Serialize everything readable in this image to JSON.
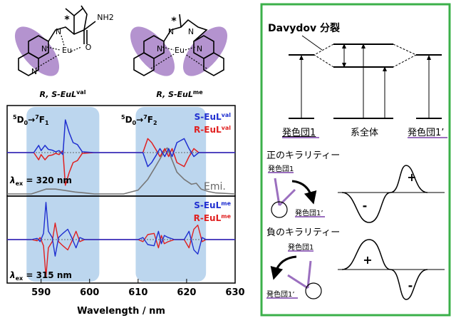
{
  "molecules": [
    {
      "label_prefix": "R, S-EuL",
      "label_sup": "val",
      "metal": "Eu",
      "chiral_mark": "*",
      "group": "NH2",
      "o": "O",
      "n1": "N",
      "n2": "N",
      "n3": "N"
    },
    {
      "label_prefix": "R, S-EuL",
      "label_sup": "me",
      "metal": "Eu",
      "chiral_mark": "*",
      "n1": "N",
      "n2": "N",
      "n3": "N",
      "n4": "N"
    }
  ],
  "colors": {
    "s_series": "#1f2fd0",
    "r_series": "#e02020",
    "emission": "#777777",
    "highlight": "#bcd6ee",
    "ligand": "#9b6fbf",
    "frame": "#3bb04a"
  },
  "spectrum": {
    "transition1": {
      "pre": "5",
      "a": "D",
      "sub": "0",
      "arrow": "→",
      "post": "7",
      "b": "F",
      "sub2": "1"
    },
    "transition2": {
      "pre": "5",
      "a": "D",
      "sub": "0",
      "arrow": "→",
      "post": "7",
      "b": "F",
      "sub2": "2"
    },
    "top_panel": {
      "legend": [
        {
          "prefix": "S-EuL",
          "sup": "val"
        },
        {
          "prefix": "R-EuL",
          "sup": "val"
        }
      ],
      "emission_label": "Emi.",
      "excitation": {
        "symbol": "λ",
        "sub": "ex",
        "value": " = 320 nm"
      }
    },
    "bottom_panel": {
      "legend": [
        {
          "prefix": "S-EuL",
          "sup": "me"
        },
        {
          "prefix": "R-EuL",
          "sup": "me"
        }
      ],
      "excitation": {
        "symbol": "λ",
        "sub": "ex",
        "value": " = 315 nm"
      }
    }
  },
  "chart_data": {
    "type": "line",
    "xlabel": "Wavelength / nm",
    "x_ticks": [
      590,
      600,
      610,
      620,
      630
    ],
    "xlim": [
      583,
      630
    ],
    "highlight_bands": [
      [
        587,
        602
      ],
      [
        609.5,
        624
      ]
    ],
    "top_series": {
      "S_val": [
        [
          583,
          0
        ],
        [
          588.5,
          0
        ],
        [
          589.5,
          0.18
        ],
        [
          590,
          0.05
        ],
        [
          590.8,
          0.18
        ],
        [
          591.5,
          0.08
        ],
        [
          592.3,
          0.06
        ],
        [
          593,
          0.02
        ],
        [
          593.7,
          0.05
        ],
        [
          594.5,
          -0.05
        ],
        [
          595,
          0.82
        ],
        [
          595.8,
          0.5
        ],
        [
          596.6,
          0.25
        ],
        [
          597.5,
          0.2
        ],
        [
          598.5,
          0.02
        ],
        [
          601,
          0
        ],
        [
          611,
          0
        ],
        [
          612,
          -0.35
        ],
        [
          612.8,
          -0.25
        ],
        [
          613.8,
          -0.05
        ],
        [
          614.5,
          0.1
        ],
        [
          615.5,
          -0.1
        ],
        [
          616.3,
          0.1
        ],
        [
          617,
          -0.1
        ],
        [
          618,
          0.25
        ],
        [
          619.5,
          0.35
        ],
        [
          620.5,
          0.1
        ],
        [
          621.5,
          -0.1
        ],
        [
          622.5,
          0
        ],
        [
          630,
          0
        ]
      ],
      "R_val": [
        [
          583,
          0
        ],
        [
          588.5,
          0
        ],
        [
          589.5,
          -0.18
        ],
        [
          590,
          -0.05
        ],
        [
          590.8,
          -0.18
        ],
        [
          591.5,
          -0.08
        ],
        [
          592.3,
          -0.06
        ],
        [
          593,
          -0.02
        ],
        [
          593.7,
          -0.05
        ],
        [
          594.5,
          0.05
        ],
        [
          595,
          -0.82
        ],
        [
          595.8,
          -0.5
        ],
        [
          596.6,
          -0.25
        ],
        [
          597.5,
          -0.2
        ],
        [
          598.5,
          -0.02
        ],
        [
          601,
          0
        ],
        [
          611,
          0
        ],
        [
          612,
          0.35
        ],
        [
          612.8,
          0.25
        ],
        [
          613.8,
          0.05
        ],
        [
          614.5,
          -0.1
        ],
        [
          615.5,
          0.1
        ],
        [
          616.3,
          -0.1
        ],
        [
          617,
          0.1
        ],
        [
          618,
          -0.25
        ],
        [
          619.5,
          -0.35
        ],
        [
          620.5,
          -0.1
        ],
        [
          621.5,
          0.1
        ],
        [
          622.5,
          0
        ],
        [
          630,
          0
        ]
      ],
      "Emission": [
        [
          583,
          0
        ],
        [
          588,
          0
        ],
        [
          589.5,
          0.05
        ],
        [
          591,
          0.1
        ],
        [
          593,
          0.1
        ],
        [
          595,
          0.07
        ],
        [
          597,
          0.04
        ],
        [
          599,
          0.02
        ],
        [
          601,
          0
        ],
        [
          607,
          0
        ],
        [
          610,
          0.08
        ],
        [
          612,
          0.3
        ],
        [
          613.5,
          0.55
        ],
        [
          614.5,
          0.72
        ],
        [
          615.5,
          0.9
        ],
        [
          616,
          0.95
        ],
        [
          617,
          0.7
        ],
        [
          618,
          0.45
        ],
        [
          619.5,
          0.3
        ],
        [
          621,
          0.2
        ],
        [
          622,
          0.22
        ],
        [
          623,
          0.1
        ],
        [
          624.5,
          0.05
        ],
        [
          626,
          0.02
        ],
        [
          630,
          0
        ]
      ]
    },
    "bottom_series": {
      "S_me": [
        [
          583,
          0
        ],
        [
          588,
          0
        ],
        [
          589.2,
          0.03
        ],
        [
          589.8,
          -0.05
        ],
        [
          590.5,
          0.15
        ],
        [
          591,
          0.9
        ],
        [
          591.5,
          0.2
        ],
        [
          592.3,
          0.05
        ],
        [
          592.9,
          -0.4
        ],
        [
          593.6,
          0.05
        ],
        [
          594.5,
          0.15
        ],
        [
          595.5,
          0.25
        ],
        [
          596.3,
          0.05
        ],
        [
          597.2,
          -0.2
        ],
        [
          598,
          0.05
        ],
        [
          599,
          0
        ],
        [
          610,
          0
        ],
        [
          611,
          0.05
        ],
        [
          612,
          -0.12
        ],
        [
          613.3,
          -0.15
        ],
        [
          614.2,
          0.2
        ],
        [
          614.8,
          -0.1
        ],
        [
          615.4,
          0.1
        ],
        [
          616.2,
          0.05
        ],
        [
          617.5,
          0
        ],
        [
          619.5,
          0
        ],
        [
          620.5,
          0.2
        ],
        [
          621.5,
          -0.25
        ],
        [
          622.3,
          -0.35
        ],
        [
          623.2,
          0.05
        ],
        [
          624,
          0
        ],
        [
          630,
          0
        ]
      ],
      "R_me": [
        [
          583,
          0
        ],
        [
          588,
          0
        ],
        [
          589.2,
          -0.03
        ],
        [
          589.8,
          0.05
        ],
        [
          590.5,
          -0.15
        ],
        [
          591,
          -0.9
        ],
        [
          591.5,
          -0.2
        ],
        [
          592.3,
          -0.05
        ],
        [
          592.9,
          0.4
        ],
        [
          593.6,
          -0.05
        ],
        [
          594.5,
          -0.15
        ],
        [
          595.5,
          -0.25
        ],
        [
          596.3,
          -0.05
        ],
        [
          597.2,
          0.2
        ],
        [
          598,
          -0.05
        ],
        [
          599,
          0
        ],
        [
          610,
          0
        ],
        [
          611,
          -0.05
        ],
        [
          612,
          0.12
        ],
        [
          613.3,
          0.15
        ],
        [
          614.2,
          -0.2
        ],
        [
          614.8,
          0.1
        ],
        [
          615.4,
          -0.1
        ],
        [
          616.2,
          -0.05
        ],
        [
          617.5,
          0
        ],
        [
          619.5,
          0
        ],
        [
          620.5,
          -0.2
        ],
        [
          621.5,
          0.25
        ],
        [
          622.3,
          0.35
        ],
        [
          623.2,
          -0.05
        ],
        [
          624,
          0
        ],
        [
          630,
          0
        ]
      ]
    }
  },
  "davydov": {
    "title": "Davydov 分裂",
    "labels": {
      "chromophore1": "発色団1",
      "system": "系全体",
      "chromophore1p": "発色団1’"
    },
    "positive": {
      "title": "正のキラリティー",
      "c1": "発色団1",
      "c1p": "発色団1’",
      "sign_top": "+",
      "sign_bottom": "-"
    },
    "negative": {
      "title": "負のキラリティー",
      "c1": "発色団1",
      "c1p": "発色団1’",
      "sign_top": "+",
      "sign_bottom": "-"
    }
  }
}
